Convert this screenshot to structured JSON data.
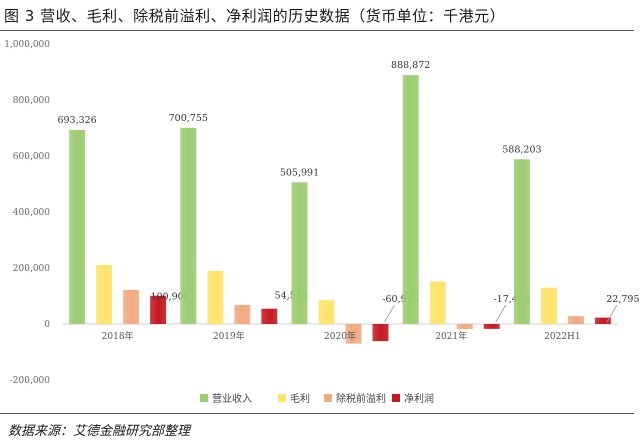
{
  "header": {
    "title": "图 3 营收、毛利、除税前溢利、净利润的历史数据（货币单位：千港元）"
  },
  "footer": {
    "source": "数据来源：艾德金融研究部整理"
  },
  "colors": {
    "revenue": "#9ccc72",
    "gross_profit": "#fde36a",
    "pretax_profit": "#f0aa82",
    "net_profit": "#c41a20"
  },
  "chart_data": {
    "type": "bar",
    "title": "",
    "xlabel": "",
    "ylabel": "",
    "ylim": [
      -200000,
      1000000
    ],
    "yticks": [
      -200000,
      0,
      200000,
      400000,
      600000,
      800000,
      1000000
    ],
    "ytick_labels": [
      "-200,000",
      "0",
      "200,000",
      "400,000",
      "600,000",
      "800,000",
      "1,000,000"
    ],
    "grid": false,
    "legend_position": "bottom",
    "categories": [
      "2018年",
      "2019年",
      "2020年",
      "2021年",
      "2022H1"
    ],
    "series": [
      {
        "name": "营业收入",
        "values": [
          693326,
          700755,
          505991,
          888872,
          588203
        ],
        "labels": [
          "693,326",
          "700,755",
          "505,991",
          "888,872",
          "588,203"
        ]
      },
      {
        "name": "毛利",
        "values": [
          211000,
          190000,
          85000,
          152000,
          130000
        ]
      },
      {
        "name": "除税前溢利",
        "values": [
          122000,
          68000,
          -70000,
          -18000,
          28000
        ]
      },
      {
        "name": "净利润",
        "values": [
          100900,
          54516,
          -60965,
          -17402,
          22795
        ],
        "labels": [
          "100,900",
          "54,516",
          "-60,965",
          "-17,402",
          "22,795"
        ]
      }
    ]
  }
}
